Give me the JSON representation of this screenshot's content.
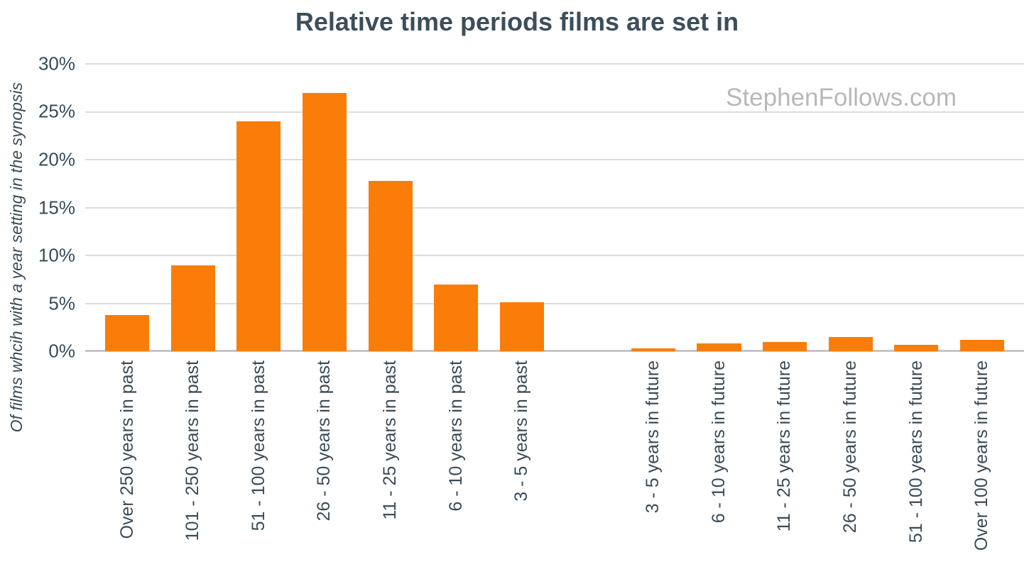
{
  "title": "Relative time periods films are set in",
  "watermark": "StephenFollows.com",
  "colors": {
    "background": "#ffffff",
    "bar": "#FA7D09",
    "title_text": "#3C4E5A",
    "axis_text": "#3A4B57",
    "gridline": "#DCDCDC",
    "baseline": "#C6C6C6",
    "watermark": "#B8B8B8"
  },
  "chart_data": {
    "type": "bar",
    "title": "Relative time periods films are set in",
    "ylabel": "Of films whcih with a year setting in the synopsis",
    "xlabel": "",
    "ylim": [
      0,
      30
    ],
    "yticks": [
      0,
      5,
      10,
      15,
      20,
      25,
      30
    ],
    "ytick_suffix": "%",
    "grid": "horizontal",
    "legend": false,
    "categories": [
      "Over 250 years in past",
      "101 - 250 years in past",
      "51 - 100 years in past",
      "26 - 50 years in past",
      "11 - 25 years in past",
      "6 - 10 years in past",
      "3 - 5 years in past",
      "3 - 5 years in future",
      "6 - 10 years in future",
      "11 - 25 years in future",
      "26 - 50 years in future",
      "51 - 100 years in future",
      "Over 100 years in future"
    ],
    "values": [
      3.8,
      9.0,
      24.0,
      27.0,
      17.8,
      7.0,
      5.1,
      0.3,
      0.8,
      1.0,
      1.5,
      0.7,
      1.2
    ],
    "separator_after_index": 6
  }
}
